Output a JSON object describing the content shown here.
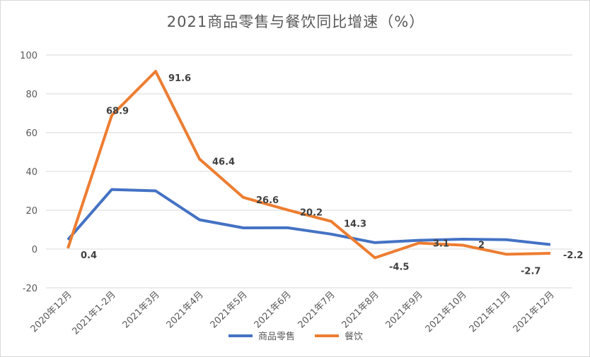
{
  "chart_data": {
    "type": "line",
    "title": "2021商品零售与餐饮同比增速（%）",
    "categories": [
      "2020年12月",
      "2021年1-2月",
      "2021年3月",
      "2021年4月",
      "2021年5月",
      "2021年6月",
      "2021年7月",
      "2021年8月",
      "2021年9月",
      "2021年10月",
      "2021年11月",
      "2021年12月"
    ],
    "ylim": [
      -20,
      100
    ],
    "yticks": [
      -20,
      0,
      20,
      40,
      60,
      80,
      100
    ],
    "grid": true,
    "legend": "bottom",
    "series": [
      {
        "name": "商品零售",
        "color": "#4472C4",
        "values": [
          4.8,
          30.7,
          30.0,
          15.1,
          10.9,
          11.0,
          7.7,
          3.3,
          4.5,
          5.1,
          4.8,
          2.3
        ],
        "labels": false
      },
      {
        "name": "餐饮",
        "color": "#ED7D31",
        "values": [
          0.4,
          68.9,
          91.6,
          46.4,
          26.6,
          20.2,
          14.3,
          -4.5,
          3.1,
          2,
          -2.7,
          -2.2
        ],
        "labels": true
      }
    ]
  }
}
